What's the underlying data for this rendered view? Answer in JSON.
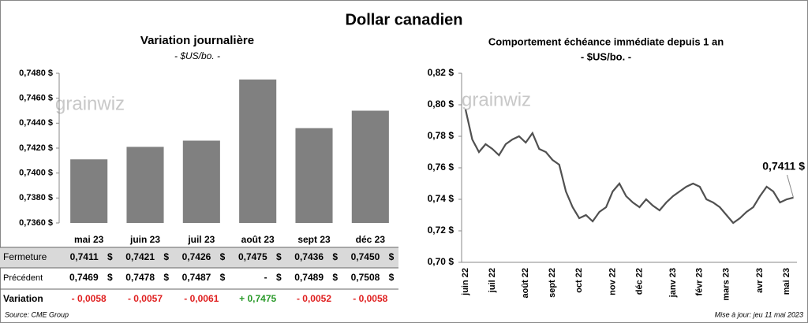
{
  "title": "Dollar canadien",
  "watermark": "grainwiz",
  "chart_data": [
    {
      "type": "bar",
      "title": "Variation  journalière",
      "subtitle": "- $US/bo. -",
      "categories": [
        "mai 23",
        "juin 23",
        "juil 23",
        "août 23",
        "sept 23",
        "déc 23"
      ],
      "values": [
        0.7411,
        0.7421,
        0.7426,
        0.7475,
        0.7436,
        0.745
      ],
      "color": "#808080",
      "ylim": [
        0.736,
        0.748
      ],
      "yticks": [
        {
          "value": 0.736,
          "label": "0,7360 $"
        },
        {
          "value": 0.738,
          "label": "0,7380 $"
        },
        {
          "value": 0.74,
          "label": "0,7400 $"
        },
        {
          "value": 0.742,
          "label": "0,7420 $"
        },
        {
          "value": 0.744,
          "label": "0,7440 $"
        },
        {
          "value": 0.746,
          "label": "0,7460 $"
        },
        {
          "value": 0.748,
          "label": "0,7480 $"
        }
      ],
      "grid": false
    },
    {
      "type": "line",
      "title": "Comportement échéance immédiate depuis 1 an",
      "subtitle": "- $US/bo. -",
      "categories": [
        "juin 22",
        null,
        null,
        null,
        "juil 22",
        null,
        null,
        null,
        null,
        "août 22",
        null,
        null,
        null,
        "sept 22",
        null,
        null,
        null,
        "oct 22",
        null,
        null,
        null,
        null,
        "nov 22",
        null,
        null,
        null,
        "déc 22",
        null,
        null,
        null,
        null,
        "janv 23",
        null,
        null,
        null,
        "févr 23",
        null,
        null,
        null,
        "mars 23",
        null,
        null,
        null,
        null,
        "avr 23",
        null,
        null,
        null,
        "mai 23",
        null
      ],
      "series": [
        {
          "name": "Dollar canadien",
          "color": "#505050",
          "values": [
            0.797,
            0.778,
            0.77,
            0.775,
            0.772,
            0.768,
            0.775,
            0.778,
            0.78,
            0.776,
            0.782,
            0.772,
            0.77,
            0.765,
            0.762,
            0.745,
            0.735,
            0.728,
            0.73,
            0.726,
            0.732,
            0.735,
            0.745,
            0.75,
            0.742,
            0.738,
            0.735,
            0.74,
            0.736,
            0.733,
            0.738,
            0.742,
            0.745,
            0.748,
            0.75,
            0.748,
            0.74,
            0.738,
            0.735,
            0.73,
            0.725,
            0.728,
            0.732,
            0.735,
            0.742,
            0.748,
            0.745,
            0.738,
            0.74,
            0.7411
          ]
        }
      ],
      "ylim": [
        0.7,
        0.82
      ],
      "yticks": [
        {
          "value": 0.7,
          "label": "0,70 $"
        },
        {
          "value": 0.72,
          "label": "0,72 $"
        },
        {
          "value": 0.74,
          "label": "0,74 $"
        },
        {
          "value": 0.76,
          "label": "0,76 $"
        },
        {
          "value": 0.78,
          "label": "0,78 $"
        },
        {
          "value": 0.8,
          "label": "0,80 $"
        },
        {
          "value": 0.82,
          "label": "0,82 $"
        }
      ],
      "annotation": {
        "text": "0,7411 $",
        "value": 0.7411
      },
      "grid": false
    }
  ],
  "table": {
    "rows": [
      {
        "label": "Fermeture",
        "cells": [
          [
            "0,7411",
            "$"
          ],
          [
            "0,7421",
            "$"
          ],
          [
            "0,7426",
            "$"
          ],
          [
            "0,7475",
            "$"
          ],
          [
            "0,7436",
            "$"
          ],
          [
            "0,7450",
            "$"
          ]
        ]
      },
      {
        "label": "Précédent",
        "cells": [
          [
            "0,7469",
            "$"
          ],
          [
            "0,7478",
            "$"
          ],
          [
            "0,7487",
            "$"
          ],
          [
            "-",
            "$"
          ],
          [
            "0,7489",
            "$"
          ],
          [
            "0,7508",
            "$"
          ]
        ]
      },
      {
        "label": "Variation",
        "cells": [
          [
            "- 0,0058"
          ],
          [
            "- 0,0057"
          ],
          [
            "- 0,0061"
          ],
          [
            "+ 0,7475"
          ],
          [
            "- 0,0052"
          ],
          [
            "- 0,0058"
          ]
        ]
      }
    ]
  },
  "footer": {
    "source": "Source: CME Group",
    "updated": "Mise à jour: jeu 11 mai 2023"
  }
}
